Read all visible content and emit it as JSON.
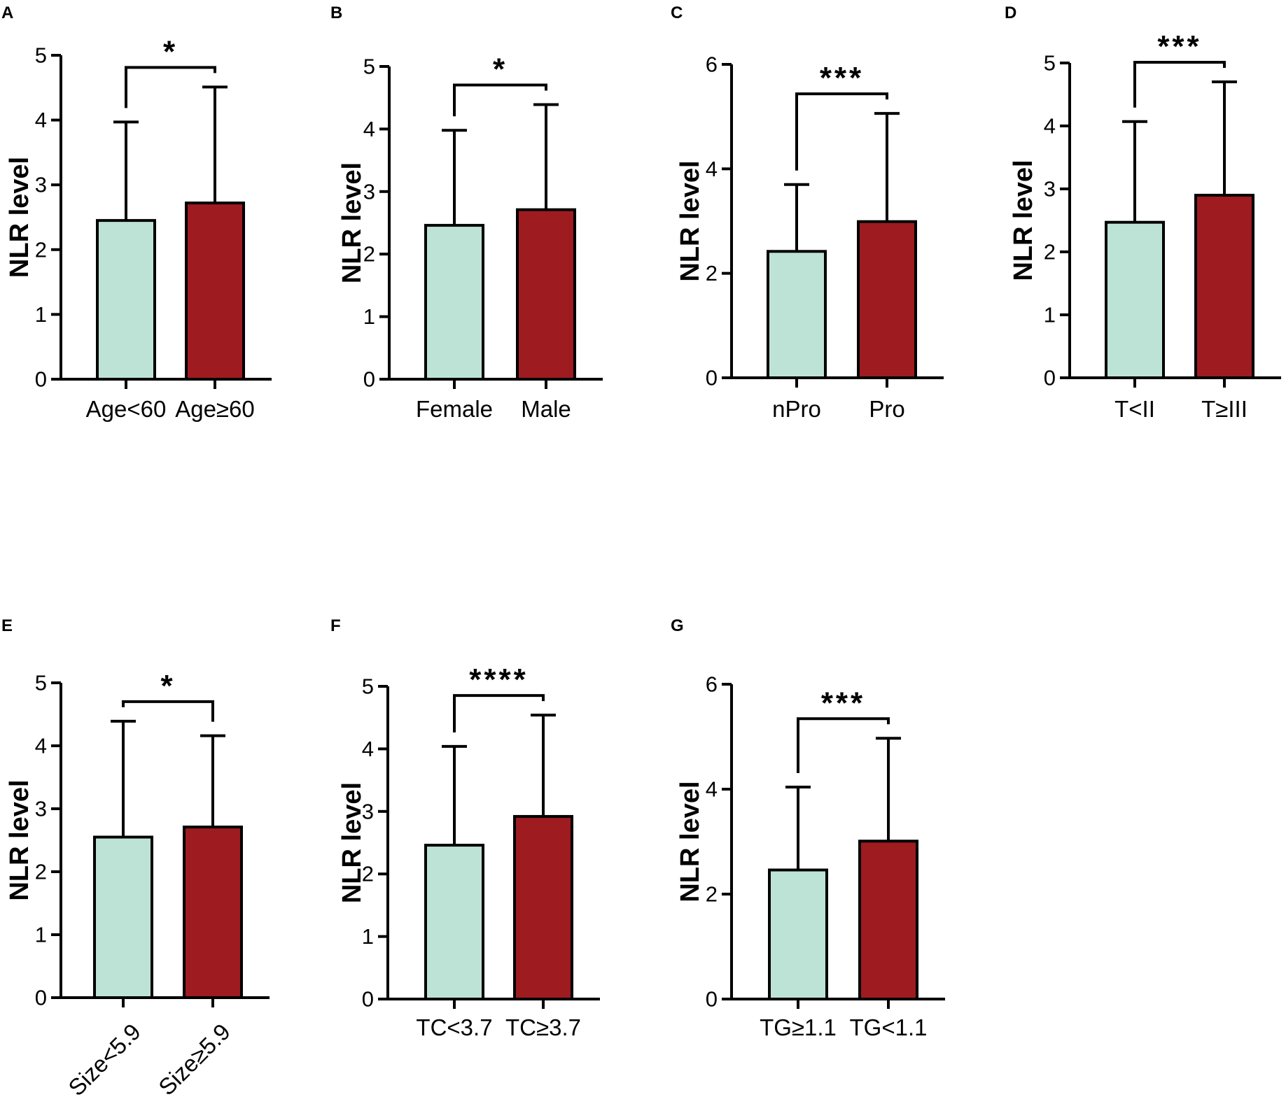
{
  "colors": {
    "control": "#bde3d7",
    "case": "#9e1b20",
    "axis": "#000000"
  },
  "chart_data": [
    {
      "panel": "A",
      "type": "bar",
      "ylabel": "NLR level",
      "ylim": [
        0,
        5
      ],
      "yticks": [
        "0",
        "1",
        "2",
        "3",
        "4",
        "5"
      ],
      "categories": [
        "Age<60",
        "Age≥60"
      ],
      "values": [
        2.45,
        2.72
      ],
      "errors": [
        1.52,
        1.79
      ],
      "significance": "*",
      "rotate_labels": false
    },
    {
      "panel": "B",
      "type": "bar",
      "ylabel": "NLR level",
      "ylim": [
        0,
        5
      ],
      "yticks": [
        "0",
        "1",
        "2",
        "3",
        "4",
        "5"
      ],
      "categories": [
        "Female",
        "Male"
      ],
      "values": [
        2.46,
        2.71
      ],
      "errors": [
        1.52,
        1.68
      ],
      "significance": "*",
      "rotate_labels": false
    },
    {
      "panel": "C",
      "type": "bar",
      "ylabel": "NLR level",
      "ylim": [
        0,
        6
      ],
      "yticks": [
        "0",
        "2",
        "4",
        "6"
      ],
      "categories": [
        "nPro",
        "Pro"
      ],
      "values": [
        2.42,
        2.99
      ],
      "errors": [
        1.28,
        2.07
      ],
      "significance": "***",
      "rotate_labels": false
    },
    {
      "panel": "D",
      "type": "bar",
      "ylabel": "NLR level",
      "ylim": [
        0,
        5
      ],
      "yticks": [
        "0",
        "1",
        "2",
        "3",
        "4",
        "5"
      ],
      "categories": [
        "T<II",
        "T≥III"
      ],
      "values": [
        2.47,
        2.9
      ],
      "errors": [
        1.6,
        1.8
      ],
      "significance": "***",
      "rotate_labels": false
    },
    {
      "panel": "E",
      "type": "bar",
      "ylabel": "NLR level",
      "ylim": [
        0,
        5
      ],
      "yticks": [
        "0",
        "1",
        "2",
        "3",
        "4",
        "5"
      ],
      "categories": [
        "Size<5.9",
        "Size≥5.9"
      ],
      "values": [
        2.55,
        2.71
      ],
      "errors": [
        1.84,
        1.45
      ],
      "significance": "*",
      "rotate_labels": true
    },
    {
      "panel": "F",
      "type": "bar",
      "ylabel": "NLR level",
      "ylim": [
        0,
        5
      ],
      "yticks": [
        "0",
        "1",
        "2",
        "3",
        "4",
        "5"
      ],
      "categories": [
        "TC<3.7",
        "TC≥3.7"
      ],
      "values": [
        2.46,
        2.92
      ],
      "errors": [
        1.58,
        1.62
      ],
      "significance": "****",
      "rotate_labels": false
    },
    {
      "panel": "G",
      "type": "bar",
      "ylabel": "NLR level",
      "ylim": [
        0,
        6
      ],
      "yticks": [
        "0",
        "2",
        "4",
        "6"
      ],
      "categories": [
        "TG≥1.1",
        "TG<1.1"
      ],
      "values": [
        2.46,
        3.01
      ],
      "errors": [
        1.58,
        1.96
      ],
      "significance": "***",
      "rotate_labels": false
    }
  ]
}
